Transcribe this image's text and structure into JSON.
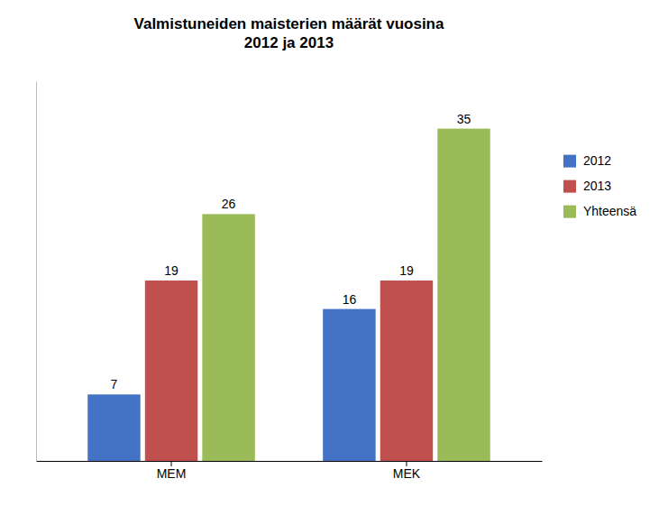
{
  "chart_data": {
    "type": "bar",
    "title": "Valmistuneiden maisterien määrät vuosina\n2012 ja 2013",
    "categories": [
      "MEM",
      "MEK"
    ],
    "series": [
      {
        "name": "2012",
        "color": "#4472C4",
        "values": [
          7,
          16
        ]
      },
      {
        "name": "2013",
        "color": "#C0504D",
        "values": [
          19,
          19
        ]
      },
      {
        "name": "Yhteensä",
        "color": "#9BBB59",
        "values": [
          26,
          35
        ]
      }
    ],
    "ylim": [
      0,
      40
    ],
    "grid": false,
    "legend": "right",
    "data_labels": true,
    "tick_labels": "x"
  }
}
